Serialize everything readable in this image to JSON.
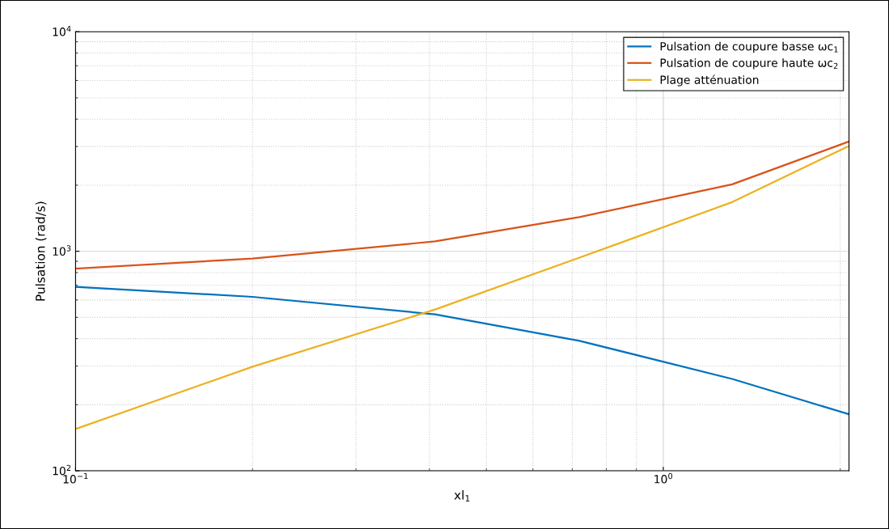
{
  "chart_data": {
    "type": "line",
    "xlabel": "xl$_{1}$",
    "ylabel": "Pulsation (rad/s)",
    "log": "xy",
    "grid": true,
    "legend": "top right",
    "xlim": [
      0.1,
      2.07
    ],
    "xticks": [
      {
        "value": 0.1,
        "label": "10$^{−1}$"
      },
      {
        "value": 1,
        "label": "10$^{0}$"
      }
    ],
    "ylim": [
      100,
      10000
    ],
    "yticks": [
      {
        "value": 100,
        "label": "10$^{2}$"
      },
      {
        "value": 1000,
        "label": "10$^{3}$"
      },
      {
        "value": 10000,
        "label": "10$^{4}$"
      }
    ],
    "x": [
      0.1,
      0.2,
      0.409,
      0.72,
      1.31,
      2.07
    ],
    "series": [
      {
        "name": "Pulsation de coupure basse ωc$_{1}$",
        "color": "#0072bd",
        "values": [
          688,
          620,
          516,
          391,
          262,
          181
        ]
      },
      {
        "name": "Pulsation de coupure haute ωc$_{2}$",
        "color": "#d95319",
        "values": [
          834,
          927,
          1109,
          1432,
          2018,
          3162
        ]
      },
      {
        "name": "Plage atténuation",
        "color": "#edb120",
        "values": [
          155,
          298,
          543,
          935,
          1675,
          3020
        ]
      }
    ]
  }
}
